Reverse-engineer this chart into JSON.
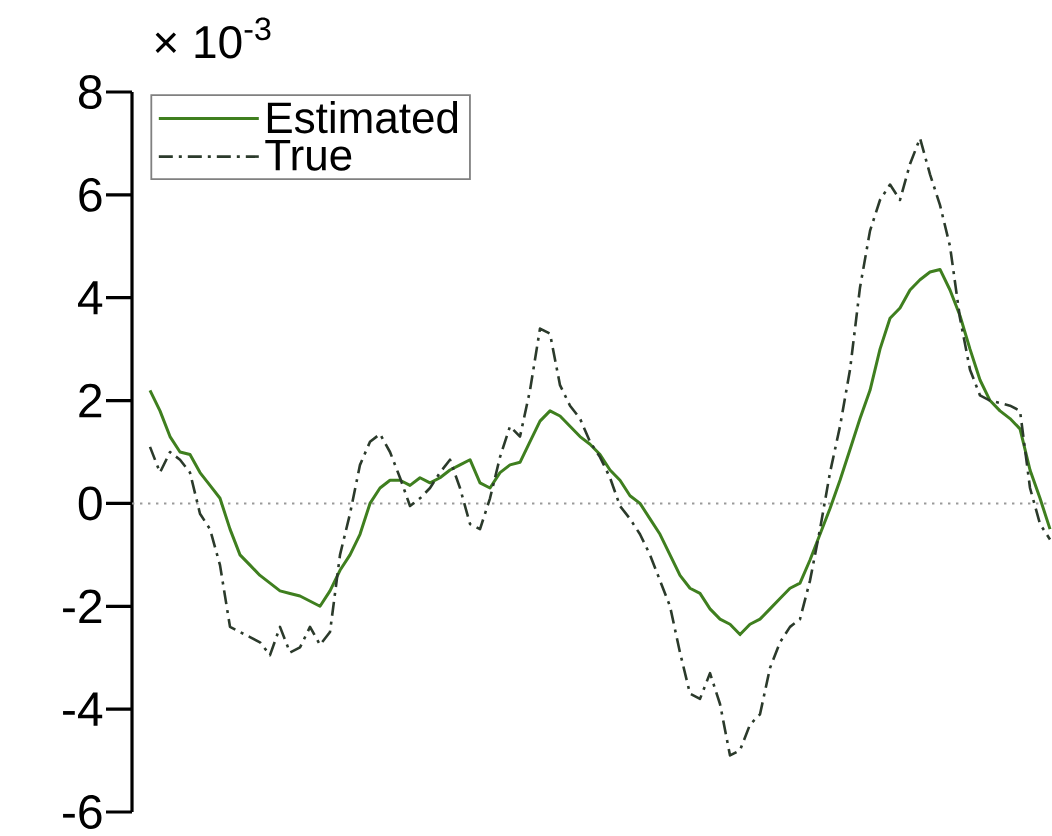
{
  "chart_data": {
    "type": "line",
    "ylabel": "× 10$^{-3}$",
    "categories": [
      null,
      null,
      null,
      null,
      null,
      null,
      null,
      null,
      null,
      null,
      null,
      null,
      null,
      null,
      null,
      null,
      null,
      null,
      null,
      null,
      null,
      null,
      null,
      null,
      null,
      null,
      null,
      null,
      null,
      null,
      null,
      null,
      null,
      null,
      null,
      null,
      null,
      null,
      null,
      null,
      null,
      null,
      null,
      null,
      null,
      null,
      null,
      null,
      null,
      null,
      null,
      null,
      null,
      null,
      null,
      null,
      null,
      null,
      null,
      null,
      null,
      null,
      null,
      null,
      null,
      null,
      null,
      null,
      null,
      null,
      null,
      null,
      null,
      null,
      null,
      null,
      null,
      null,
      null,
      null,
      null,
      null,
      null,
      null,
      null,
      null,
      null,
      null,
      null,
      null,
      null
    ],
    "series": [
      {
        "name": "Estimated",
        "color": "#3f7f1f",
        "line_style": "solid",
        "values": [
          2.2,
          1.8,
          1.3,
          1.0,
          0.95,
          0.6,
          0.35,
          0.1,
          -0.5,
          -1.0,
          -1.2,
          -1.4,
          -1.55,
          -1.7,
          -1.75,
          -1.8,
          -1.9,
          -2.0,
          -1.7,
          -1.3,
          -1.0,
          -0.6,
          0.0,
          0.3,
          0.45,
          0.45,
          0.35,
          0.5,
          0.4,
          0.5,
          0.65,
          0.75,
          0.85,
          0.4,
          0.3,
          0.6,
          0.75,
          0.8,
          1.2,
          1.6,
          1.8,
          1.7,
          1.5,
          1.3,
          1.15,
          0.95,
          0.65,
          0.45,
          0.15,
          0.0,
          -0.3,
          -0.6,
          -1.0,
          -1.4,
          -1.65,
          -1.75,
          -2.05,
          -2.25,
          -2.35,
          -2.55,
          -2.35,
          -2.25,
          -2.05,
          -1.85,
          -1.65,
          -1.55,
          -1.1,
          -0.6,
          -0.1,
          0.45,
          1.05,
          1.65,
          2.2,
          3.0,
          3.6,
          3.8,
          4.15,
          4.35,
          4.5,
          4.55,
          4.15,
          3.65,
          3.0,
          2.4,
          2.0,
          1.8,
          1.65,
          1.45,
          0.65,
          0.1,
          -0.5
        ]
      },
      {
        "name": "True",
        "color": "#2b3a2b",
        "line_style": "dashdot",
        "values": [
          1.1,
          0.6,
          1.0,
          0.85,
          0.6,
          -0.2,
          -0.5,
          -1.2,
          -2.4,
          -2.5,
          -2.6,
          -2.7,
          -2.95,
          -2.4,
          -2.9,
          -2.8,
          -2.4,
          -2.75,
          -2.5,
          -1.0,
          -0.2,
          0.75,
          1.2,
          1.35,
          1.0,
          0.5,
          -0.05,
          0.1,
          0.3,
          0.6,
          0.85,
          0.3,
          -0.4,
          -0.5,
          0.1,
          0.9,
          1.5,
          1.3,
          2.2,
          3.4,
          3.3,
          2.3,
          1.9,
          1.65,
          1.2,
          0.9,
          0.5,
          -0.05,
          -0.3,
          -0.6,
          -1.0,
          -1.5,
          -2.0,
          -2.9,
          -3.7,
          -3.8,
          -3.3,
          -3.9,
          -4.9,
          -4.8,
          -4.3,
          -4.1,
          -3.2,
          -2.7,
          -2.4,
          -2.25,
          -1.5,
          -0.5,
          0.6,
          1.5,
          2.6,
          4.2,
          5.3,
          5.9,
          6.2,
          5.9,
          6.6,
          7.1,
          6.4,
          5.8,
          5.0,
          3.6,
          2.6,
          2.1,
          2.0,
          1.95,
          1.9,
          1.8,
          0.3,
          -0.4,
          -0.7
        ]
      }
    ],
    "ylim": [
      -6,
      8
    ],
    "yticks": [
      -6,
      -4,
      -2,
      0,
      2,
      4,
      6,
      8
    ],
    "ref_lines": [
      {
        "axis": "y",
        "value": 0,
        "color": "#9a9a9a",
        "line_style": "dotted"
      }
    ],
    "legend": "top left",
    "marker": "none"
  }
}
